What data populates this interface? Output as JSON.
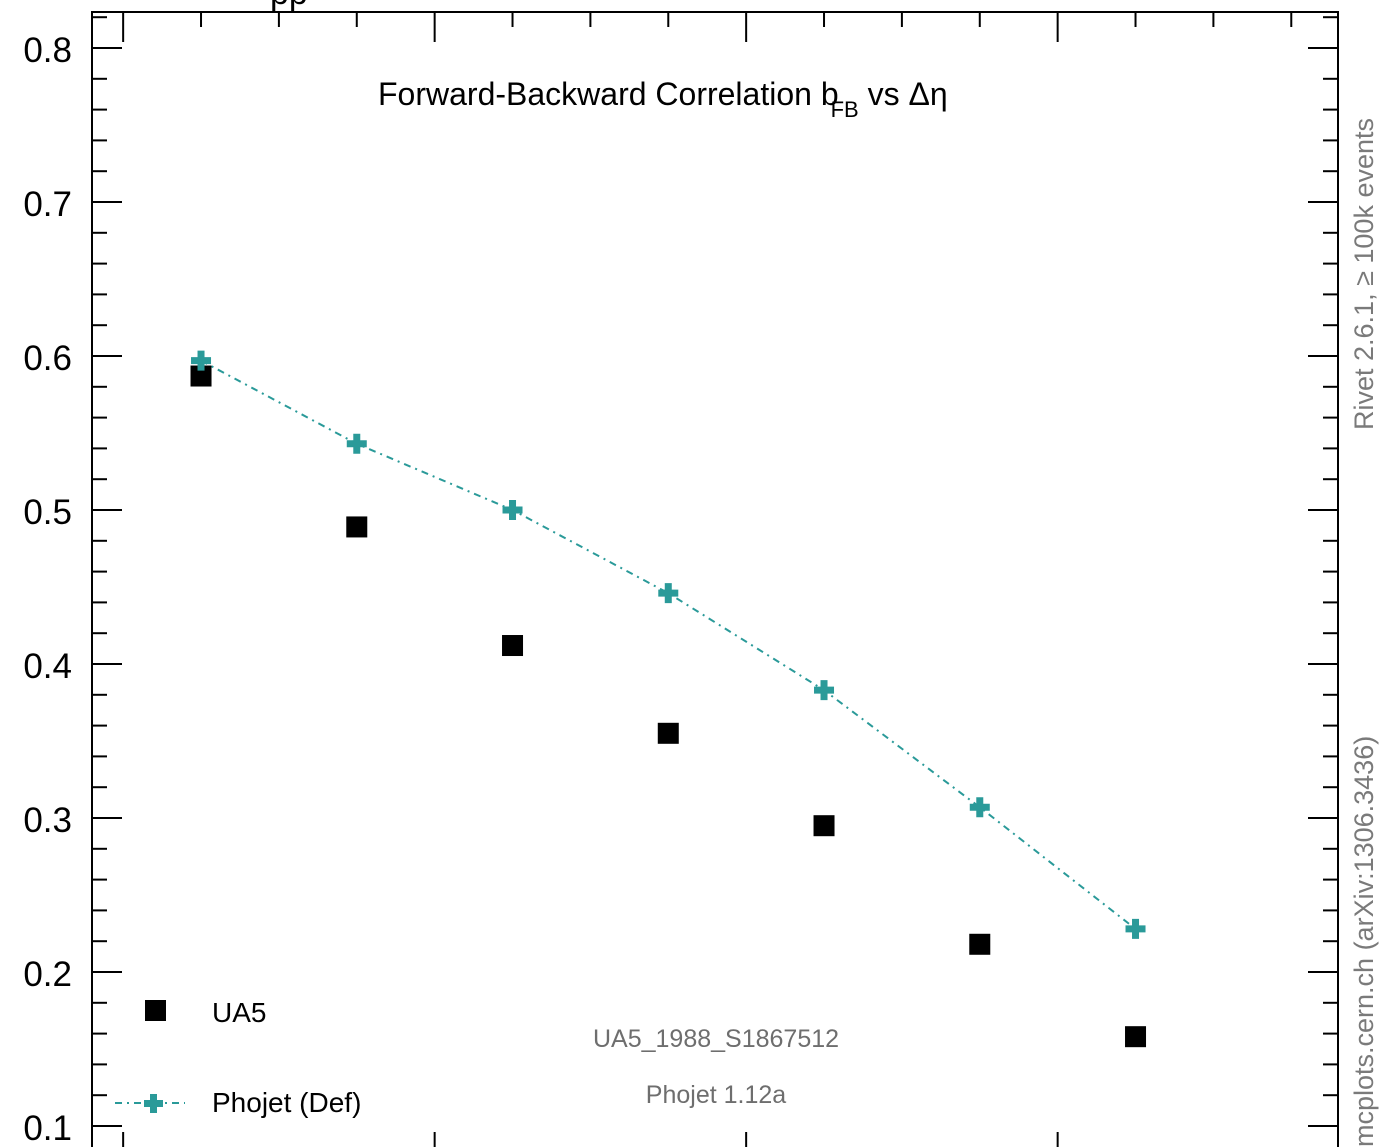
{
  "chart_data": {
    "type": "scatter",
    "title": "Forward-Backward Correlation b",
    "title_sub": "FB",
    "title_tail": " vs Δη",
    "header_fragment": "pp",
    "xlabel": "",
    "ylabel": "",
    "ylim": [
      0.1,
      0.82
    ],
    "xlim": [
      -0.1,
      3.9
    ],
    "yticks": [
      0.1,
      0.2,
      0.3,
      0.4,
      0.5,
      0.6,
      0.7,
      0.8
    ],
    "ytick_labels": [
      "0.1",
      "0.2",
      "0.3",
      "0.4",
      "0.5",
      "0.6",
      "0.7",
      "0.8"
    ],
    "x": [
      0.25,
      0.75,
      1.25,
      1.75,
      2.25,
      2.75,
      3.25
    ],
    "series": [
      {
        "name": "UA5",
        "marker": "square",
        "color": "#000000",
        "line": false,
        "values": [
          0.587,
          0.489,
          0.412,
          0.355,
          0.295,
          0.218,
          0.158
        ]
      },
      {
        "name": "Phojet (Def)",
        "marker": "plus",
        "color": "#2a9a99",
        "line": "dash-dot",
        "values": [
          0.597,
          0.543,
          0.5,
          0.446,
          0.383,
          0.307,
          0.228
        ]
      }
    ],
    "annotations": [
      "UA5_1988_S1867512",
      "Phojet 1.12a"
    ],
    "grid": false,
    "legend_position": "bottom-left"
  },
  "side_labels": {
    "right_top": "Rivet 2.6.1, ≥ 100k events",
    "right_bottom": "mcplots.cern.ch (arXiv:1306.3436)"
  },
  "colors": {
    "data": "#000000",
    "mc": "#2a9a99",
    "annotation": "#6e6e6e"
  }
}
